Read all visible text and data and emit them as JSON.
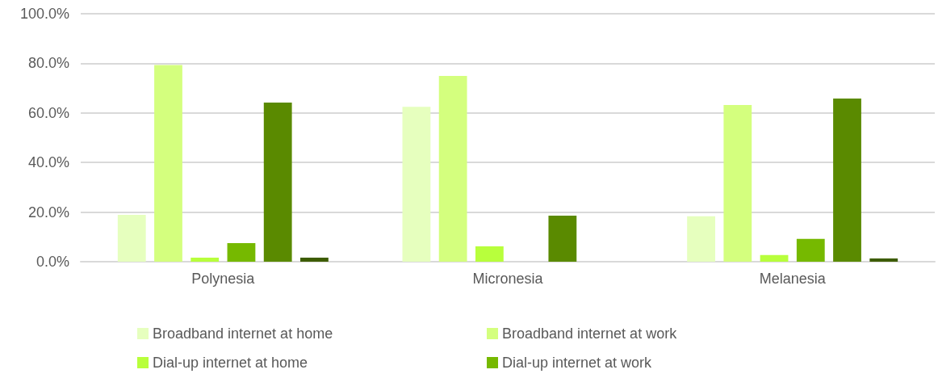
{
  "chart_data": {
    "type": "bar",
    "categories": [
      "Polynesia",
      "Micronesia",
      "Melanesia"
    ],
    "series": [
      {
        "name": "Broadband internet at home",
        "color": "#e6ffbe",
        "values": [
          18.9,
          62.5,
          18.3
        ]
      },
      {
        "name": "Broadband internet at work",
        "color": "#d4ff7e",
        "values": [
          79.3,
          74.9,
          63.2
        ]
      },
      {
        "name": "Dial-up internet at home",
        "color": "#b8ff3c",
        "values": [
          1.6,
          6.2,
          2.7
        ]
      },
      {
        "name": "Dial-up internet at work",
        "color": "#76b900",
        "values": [
          7.5,
          0,
          9.2
        ]
      },
      {
        "color": "#5a8a00",
        "values": [
          64.2,
          18.6,
          65.8
        ]
      },
      {
        "color": "#3d5c00",
        "values": [
          1.6,
          0,
          1.3
        ]
      }
    ],
    "ylim": [
      0,
      100
    ],
    "yticks": [
      {
        "value": 0,
        "label": "0.0%"
      },
      {
        "value": 20,
        "label": "20.0%"
      },
      {
        "value": 40,
        "label": "40.0%"
      },
      {
        "value": 60,
        "label": "60.0%"
      },
      {
        "value": 80,
        "label": "80.0%"
      },
      {
        "value": 100,
        "label": "100.0%"
      }
    ],
    "grid": "y",
    "legend": "bottom"
  }
}
